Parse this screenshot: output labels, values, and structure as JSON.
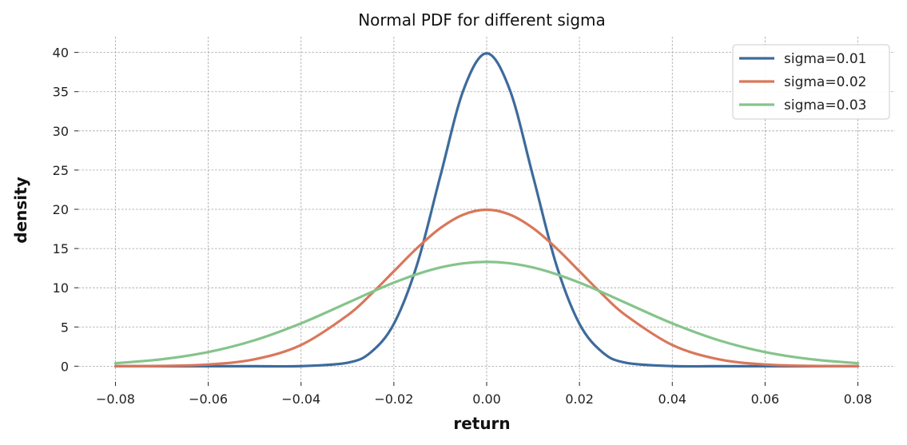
{
  "chart_data": {
    "type": "line",
    "title": "Normal PDF for different sigma",
    "xlabel": "return",
    "ylabel": "density",
    "xlim": [
      -0.088,
      0.088
    ],
    "ylim": [
      -2,
      42
    ],
    "xticks": [
      -0.08,
      -0.06,
      -0.04,
      -0.02,
      0.0,
      0.02,
      0.04,
      0.06,
      0.08
    ],
    "xtick_labels": [
      "−0.08",
      "−0.06",
      "−0.04",
      "−0.02",
      "0.00",
      "0.02",
      "0.04",
      "0.06",
      "0.08"
    ],
    "yticks": [
      0,
      5,
      10,
      15,
      20,
      25,
      30,
      35,
      40
    ],
    "ytick_labels": [
      "0",
      "5",
      "10",
      "15",
      "20",
      "25",
      "30",
      "35",
      "40"
    ],
    "grid": true,
    "legend_position": "top-right",
    "x": [
      -0.08,
      -0.07,
      -0.06,
      -0.05,
      -0.04,
      -0.03,
      -0.025,
      -0.02,
      -0.015,
      -0.01,
      -0.005,
      0.0,
      0.005,
      0.01,
      0.015,
      0.02,
      0.025,
      0.03,
      0.04,
      0.05,
      0.06,
      0.07,
      0.08
    ],
    "series": [
      {
        "name": "sigma=0.01",
        "color": "#3d6b9c",
        "values": [
          0.0,
          0.0,
          0.0,
          0.0,
          0.01,
          0.44,
          1.75,
          5.4,
          12.95,
          24.2,
          35.21,
          39.89,
          35.21,
          24.2,
          12.95,
          5.4,
          1.75,
          0.44,
          0.01,
          0.0,
          0.0,
          0.0,
          0.0
        ]
      },
      {
        "name": "sigma=0.02",
        "color": "#d9775a",
        "values": [
          0.01,
          0.04,
          0.22,
          0.88,
          2.7,
          6.48,
          9.13,
          12.1,
          15.06,
          17.6,
          19.33,
          19.95,
          19.33,
          17.6,
          15.06,
          12.1,
          9.13,
          6.48,
          2.7,
          0.88,
          0.22,
          0.04,
          0.01
        ]
      },
      {
        "name": "sigma=0.03",
        "color": "#85c48a",
        "values": [
          0.38,
          0.88,
          1.8,
          3.31,
          5.46,
          8.07,
          9.4,
          10.65,
          11.73,
          12.58,
          13.12,
          13.3,
          13.12,
          12.58,
          11.73,
          10.65,
          9.4,
          8.07,
          5.46,
          3.31,
          1.8,
          0.88,
          0.38
        ]
      }
    ]
  }
}
